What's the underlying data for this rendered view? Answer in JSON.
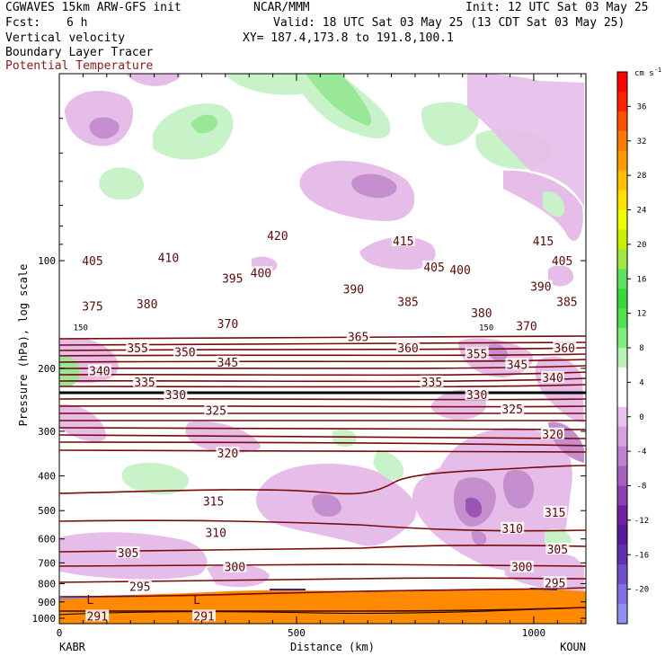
{
  "header": {
    "title": "CGWAVES 15km ARW-GFS init",
    "org": "NCAR/MMM",
    "init": "Init: 12 UTC Sat 03 May 25",
    "fcst_label": "Fcst:",
    "fcst_value": "6 h",
    "valid": "Valid: 18 UTC Sat 03 May 25 (13 CDT Sat 03 May 25)",
    "field1": "Vertical velocity",
    "field2": "Boundary Layer Tracer",
    "field3": "Potential Temperature",
    "xy": "XY= 187.4,173.8 to 191.8,100.1",
    "field3_color": "#8b1a1a"
  },
  "chart_data": {
    "type": "cross-section",
    "xlabel": "Distance (km)",
    "ylabel": "Pressure (hPa), log scale",
    "x_ticks": [
      0,
      500,
      1000
    ],
    "x_range": [
      0,
      1110
    ],
    "x_endpoints": [
      "KABR",
      "KOUN"
    ],
    "y_ticks": [
      100,
      200,
      300,
      400,
      500,
      600,
      700,
      800,
      900,
      1000
    ],
    "y_range_hpa": [
      1000,
      30
    ],
    "y_scale": "log",
    "colorbar": {
      "units": "cm s-1",
      "labels": [
        36,
        32,
        28,
        24,
        20,
        16,
        12,
        8,
        4,
        0,
        -4,
        -8,
        -12,
        -16,
        -20
      ],
      "colors": [
        "#ff0000",
        "#ff2200",
        "#ff5000",
        "#ff7a00",
        "#ff9a00",
        "#ffc000",
        "#ffe000",
        "#f0ff00",
        "#c8f000",
        "#a0e840",
        "#60e060",
        "#38d838",
        "#50e050",
        "#80ec80",
        "#b8f4b8",
        "#ffffff",
        "#ffffff",
        "#eac0ee",
        "#d8a0e0",
        "#c080d0",
        "#a860c0",
        "#8a40b0",
        "#7020a0",
        "#5a189a",
        "#6030b0",
        "#7050c8",
        "#8070e0",
        "#9090f0"
      ]
    },
    "theta_contour_labels": [
      {
        "value": "420",
        "x": 460,
        "p": 85
      },
      {
        "value": "415",
        "x": 725,
        "p": 88
      },
      {
        "value": "415",
        "x": 1020,
        "p": 88
      },
      {
        "value": "405",
        "x": 70,
        "p": 100
      },
      {
        "value": "410",
        "x": 230,
        "p": 98
      },
      {
        "value": "405",
        "x": 790,
        "p": 104
      },
      {
        "value": "400",
        "x": 845,
        "p": 106
      },
      {
        "value": "405",
        "x": 1060,
        "p": 100
      },
      {
        "value": "395",
        "x": 365,
        "p": 112
      },
      {
        "value": "400",
        "x": 425,
        "p": 108
      },
      {
        "value": "390",
        "x": 620,
        "p": 120
      },
      {
        "value": "390",
        "x": 1015,
        "p": 118
      },
      {
        "value": "375",
        "x": 70,
        "p": 134
      },
      {
        "value": "380",
        "x": 185,
        "p": 132
      },
      {
        "value": "385",
        "x": 735,
        "p": 130
      },
      {
        "value": "385",
        "x": 1070,
        "p": 130
      },
      {
        "value": "370",
        "x": 355,
        "p": 150
      },
      {
        "value": "380",
        "x": 890,
        "p": 140
      },
      {
        "value": "370",
        "x": 985,
        "p": 152
      },
      {
        "value": "365",
        "x": 630,
        "p": 163
      },
      {
        "value": "355",
        "x": 165,
        "p": 175
      },
      {
        "value": "350",
        "x": 265,
        "p": 180
      },
      {
        "value": "360",
        "x": 735,
        "p": 175
      },
      {
        "value": "360",
        "x": 1065,
        "p": 175
      },
      {
        "value": "345",
        "x": 355,
        "p": 192
      },
      {
        "value": "355",
        "x": 880,
        "p": 182
      },
      {
        "value": "345",
        "x": 965,
        "p": 195
      },
      {
        "value": "340",
        "x": 85,
        "p": 203
      },
      {
        "value": "340",
        "x": 1040,
        "p": 212
      },
      {
        "value": "335",
        "x": 180,
        "p": 218
      },
      {
        "value": "335",
        "x": 785,
        "p": 218
      },
      {
        "value": "330",
        "x": 245,
        "p": 237
      },
      {
        "value": "330",
        "x": 880,
        "p": 237
      },
      {
        "value": "325",
        "x": 330,
        "p": 262
      },
      {
        "value": "325",
        "x": 955,
        "p": 260
      },
      {
        "value": "320",
        "x": 1040,
        "p": 305
      },
      {
        "value": "320",
        "x": 355,
        "p": 345
      },
      {
        "value": "315",
        "x": 325,
        "p": 470
      },
      {
        "value": "315",
        "x": 1045,
        "p": 505
      },
      {
        "value": "310",
        "x": 330,
        "p": 575
      },
      {
        "value": "310",
        "x": 955,
        "p": 560
      },
      {
        "value": "305",
        "x": 145,
        "p": 655
      },
      {
        "value": "305",
        "x": 1050,
        "p": 640
      },
      {
        "value": "300",
        "x": 370,
        "p": 718
      },
      {
        "value": "300",
        "x": 975,
        "p": 718
      },
      {
        "value": "295",
        "x": 170,
        "p": 815
      },
      {
        "value": "295",
        "x": 1045,
        "p": 795
      },
      {
        "value": "291",
        "x": 80,
        "p": 985
      },
      {
        "value": "291",
        "x": 305,
        "p": 985
      },
      {
        "value": "150",
        "x": 45,
        "p": 152
      },
      {
        "value": "150",
        "x": 900,
        "p": 152
      }
    ],
    "low_markers": [
      {
        "label": "L",
        "x": 65,
        "p": 890
      },
      {
        "label": "L",
        "x": 290,
        "p": 890
      }
    ]
  }
}
